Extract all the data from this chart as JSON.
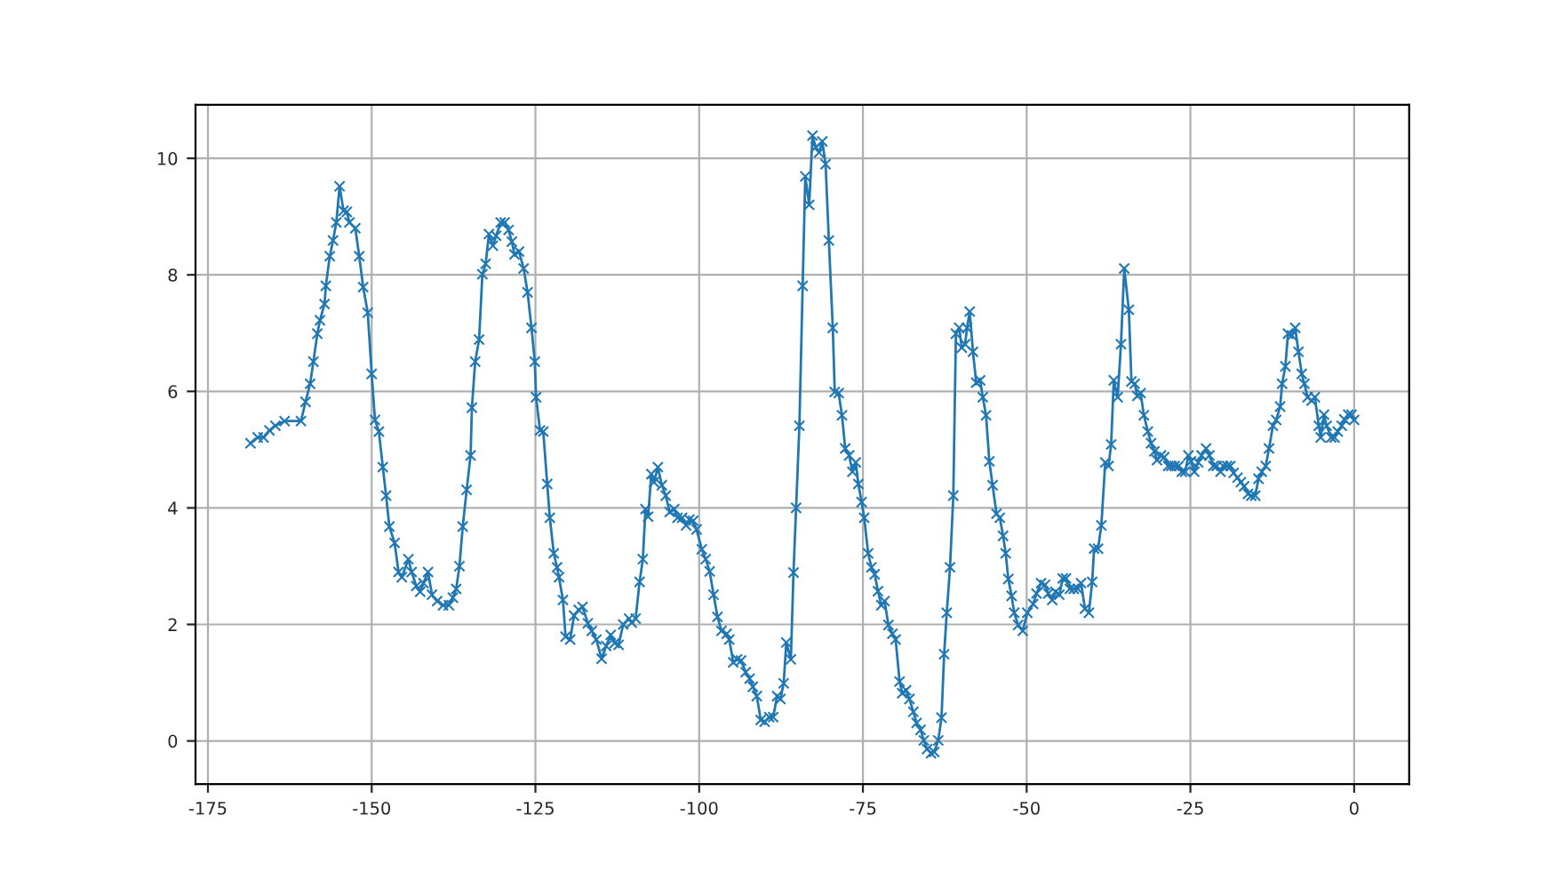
{
  "chart_data": {
    "type": "line",
    "marker": "cross",
    "grid": true,
    "xlim": [
      -176.9,
      8.4
    ],
    "ylim": [
      -0.74,
      10.92
    ],
    "xticks": [
      -175,
      -150,
      -125,
      -100,
      -75,
      -50,
      -25,
      0
    ],
    "yticks": [
      0,
      2,
      4,
      6,
      8,
      10
    ],
    "series": [
      {
        "color": "#1f77b4",
        "x": [
          -168.5,
          -167.4,
          -166.5,
          -165.6,
          -164.7,
          -163.3,
          -160.8,
          -160.1,
          -159.4,
          -158.9,
          -158.3,
          -157.9,
          -157.2,
          -157.0,
          -156.4,
          -155.9,
          -155.4,
          -154.9,
          -154.3,
          -153.8,
          -153.4,
          -152.5,
          -151.9,
          -151.3,
          -150.6,
          -150.0,
          -149.5,
          -148.9,
          -148.3,
          -147.8,
          -147.3,
          -146.5,
          -145.9,
          -145.4,
          -144.4,
          -143.9,
          -143.2,
          -142.6,
          -142.1,
          -141.4,
          -140.8,
          -140.0,
          -139.1,
          -138.2,
          -137.6,
          -137.1,
          -136.6,
          -136.1,
          -135.5,
          -134.9,
          -134.7,
          -134.2,
          -133.6,
          -133.1,
          -132.6,
          -132.1,
          -131.5,
          -131.0,
          -130.3,
          -129.7,
          -129.1,
          -128.6,
          -128.2,
          -127.5,
          -126.8,
          -126.2,
          -125.6,
          -125.1,
          -124.9,
          -124.3,
          -123.8,
          -123.2,
          -122.8,
          -122.2,
          -121.7,
          -121.4,
          -120.8,
          -120.4,
          -119.7,
          -119.1,
          -118.4,
          -117.8,
          -117.0,
          -116.4,
          -115.7,
          -114.9,
          -114.2,
          -113.5,
          -112.9,
          -112.3,
          -111.6,
          -110.7,
          -110.3,
          -109.7,
          -109.1,
          -108.6,
          -108.2,
          -107.8,
          -107.3,
          -106.9,
          -106.3,
          -105.7,
          -105.1,
          -104.5,
          -103.8,
          -103.3,
          -102.6,
          -102.0,
          -101.5,
          -100.9,
          -100.4,
          -99.6,
          -99.0,
          -98.4,
          -97.8,
          -97.2,
          -96.6,
          -95.8,
          -95.4,
          -94.8,
          -94.2,
          -93.6,
          -92.9,
          -92.3,
          -91.8,
          -91.2,
          -90.6,
          -90.0,
          -89.3,
          -88.7,
          -88.1,
          -87.6,
          -87.1,
          -86.7,
          -86.0,
          -85.6,
          -85.2,
          -84.7,
          -84.2,
          -83.8,
          -83.2,
          -82.7,
          -82.2,
          -81.7,
          -81.2,
          -80.7,
          -80.2,
          -79.6,
          -79.3,
          -78.7,
          -78.2,
          -77.7,
          -77.1,
          -76.6,
          -76.1,
          -75.7,
          -75.2,
          -74.8,
          -74.2,
          -73.7,
          -73.2,
          -72.7,
          -72.2,
          -71.7,
          -71.1,
          -70.5,
          -70.0,
          -69.4,
          -69.0,
          -68.4,
          -67.9,
          -67.3,
          -66.8,
          -66.2,
          -65.7,
          -65.2,
          -64.6,
          -64.1,
          -63.5,
          -63.0,
          -62.6,
          -62.2,
          -61.7,
          -61.2,
          -60.8,
          -60.3,
          -59.9,
          -59.4,
          -59.1,
          -58.7,
          -58.2,
          -57.7,
          -57.1,
          -56.7,
          -56.2,
          -55.7,
          -55.2,
          -54.6,
          -54.1,
          -53.6,
          -53.2,
          -52.8,
          -52.3,
          -51.9,
          -51.3,
          -50.6,
          -49.9,
          -49.0,
          -48.5,
          -47.8,
          -47.2,
          -46.7,
          -46.1,
          -45.6,
          -45.0,
          -44.5,
          -44.0,
          -43.4,
          -42.8,
          -42.2,
          -41.7,
          -41.1,
          -40.5,
          -40.0,
          -39.7,
          -39.1,
          -38.6,
          -38.0,
          -37.5,
          -37.1,
          -36.7,
          -36.1,
          -35.6,
          -35.1,
          -34.4,
          -34.0,
          -33.5,
          -33.1,
          -32.6,
          -32.1,
          -31.5,
          -31.0,
          -30.5,
          -30.1,
          -29.5,
          -29.0,
          -28.4,
          -27.9,
          -27.4,
          -26.8,
          -26.3,
          -25.8,
          -25.3,
          -24.9,
          -24.4,
          -23.8,
          -23.3,
          -22.6,
          -22.1,
          -21.5,
          -21.0,
          -20.4,
          -20.0,
          -19.4,
          -18.9,
          -18.4,
          -17.8,
          -17.3,
          -16.8,
          -16.2,
          -15.7,
          -15.1,
          -14.6,
          -14.1,
          -13.5,
          -13.0,
          -12.4,
          -11.9,
          -11.3,
          -11.0,
          -10.5,
          -10.1,
          -9.5,
          -9.0,
          -8.5,
          -8.0,
          -7.6,
          -7.1,
          -6.5,
          -6.0,
          -5.4,
          -5.1,
          -4.6,
          -4.2,
          -3.5,
          -3.0,
          -2.5,
          -1.9,
          -1.5,
          -0.9,
          -0.4,
          0.0
        ],
        "values": [
          5.11,
          5.21,
          5.21,
          5.33,
          5.41,
          5.49,
          5.49,
          5.82,
          6.13,
          6.51,
          6.99,
          7.22,
          7.5,
          7.81,
          8.32,
          8.59,
          8.9,
          9.52,
          9.1,
          9.08,
          8.9,
          8.8,
          8.32,
          7.79,
          7.35,
          6.3,
          5.51,
          5.31,
          4.7,
          4.21,
          3.68,
          3.4,
          2.9,
          2.81,
          3.12,
          2.9,
          2.66,
          2.56,
          2.71,
          2.9,
          2.51,
          2.4,
          2.33,
          2.33,
          2.46,
          2.61,
          3.0,
          3.68,
          4.31,
          4.9,
          5.72,
          6.51,
          6.89,
          8.01,
          8.19,
          8.7,
          8.5,
          8.67,
          8.9,
          8.9,
          8.77,
          8.57,
          8.35,
          8.4,
          8.11,
          7.7,
          7.09,
          6.51,
          5.9,
          5.33,
          5.31,
          4.41,
          3.83,
          3.22,
          2.98,
          2.81,
          2.42,
          1.79,
          1.74,
          2.15,
          2.25,
          2.3,
          2.02,
          1.89,
          1.74,
          1.41,
          1.63,
          1.82,
          1.68,
          1.65,
          2.0,
          2.1,
          2.03,
          2.1,
          2.73,
          3.12,
          3.98,
          3.85,
          4.58,
          4.44,
          4.7,
          4.39,
          4.21,
          3.93,
          3.98,
          3.83,
          3.83,
          3.7,
          3.8,
          3.78,
          3.63,
          3.29,
          3.12,
          2.91,
          2.51,
          2.13,
          1.89,
          1.84,
          1.74,
          1.35,
          1.4,
          1.38,
          1.18,
          1.07,
          0.93,
          0.77,
          0.36,
          0.33,
          0.41,
          0.41,
          0.77,
          0.72,
          0.99,
          1.69,
          1.4,
          2.89,
          4.0,
          5.41,
          7.81,
          9.69,
          9.2,
          10.39,
          10.19,
          10.1,
          10.29,
          9.9,
          8.59,
          7.09,
          5.99,
          5.97,
          5.59,
          5.02,
          4.9,
          4.62,
          4.78,
          4.41,
          4.1,
          3.83,
          3.22,
          2.98,
          2.86,
          2.57,
          2.33,
          2.4,
          1.99,
          1.84,
          1.74,
          1.02,
          0.82,
          0.87,
          0.72,
          0.5,
          0.31,
          0.19,
          0.01,
          -0.14,
          -0.21,
          -0.19,
          0.01,
          0.4,
          1.49,
          2.2,
          2.98,
          4.21,
          6.99,
          7.09,
          6.75,
          6.81,
          7.09,
          7.37,
          6.68,
          6.15,
          6.19,
          5.9,
          5.59,
          4.8,
          4.39,
          3.9,
          3.83,
          3.52,
          3.22,
          2.78,
          2.49,
          2.2,
          1.99,
          1.89,
          2.2,
          2.35,
          2.53,
          2.71,
          2.68,
          2.53,
          2.42,
          2.56,
          2.51,
          2.79,
          2.79,
          2.61,
          2.61,
          2.61,
          2.71,
          2.27,
          2.2,
          2.73,
          3.3,
          3.3,
          3.7,
          4.78,
          4.72,
          5.09,
          6.19,
          5.9,
          6.81,
          8.11,
          7.4,
          6.17,
          6.13,
          5.92,
          5.97,
          5.59,
          5.31,
          5.11,
          4.97,
          4.82,
          4.9,
          4.87,
          4.72,
          4.72,
          4.72,
          4.72,
          4.62,
          4.62,
          4.9,
          4.8,
          4.62,
          4.78,
          4.9,
          5.02,
          4.9,
          4.72,
          4.72,
          4.62,
          4.72,
          4.72,
          4.72,
          4.6,
          4.52,
          4.44,
          4.37,
          4.24,
          4.21,
          4.21,
          4.5,
          4.62,
          4.72,
          5.02,
          5.41,
          5.51,
          5.74,
          6.13,
          6.43,
          6.99,
          6.96,
          7.09,
          6.68,
          6.3,
          6.13,
          5.9,
          5.84,
          5.9,
          5.41,
          5.21,
          5.6,
          5.41,
          5.21,
          5.21,
          5.31,
          5.41,
          5.52,
          5.6,
          5.6,
          5.51
        ]
      }
    ]
  }
}
